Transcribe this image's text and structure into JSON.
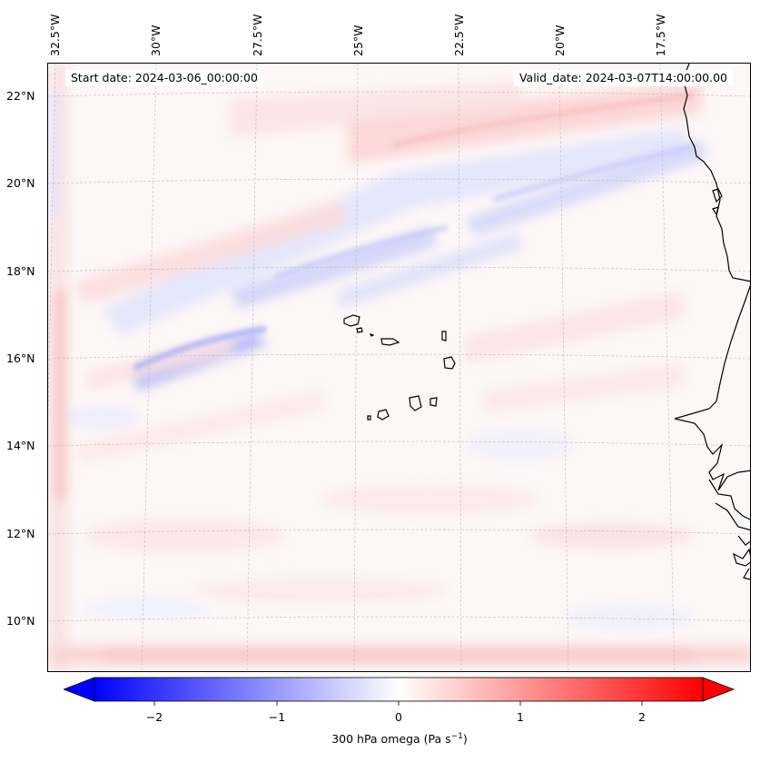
{
  "header": {
    "start_date": "Start date: 2024-03-06_00:00:00",
    "valid_date": "Valid_date: 2024-03-07T14:00:00.00"
  },
  "axes": {
    "lon_labels": [
      "32.5°W",
      "30°W",
      "27.5°W",
      "25°W",
      "22.5°W",
      "20°W",
      "17.5°W"
    ],
    "lat_labels": [
      "22°N",
      "20°N",
      "18°N",
      "16°N",
      "14°N",
      "12°N",
      "10°N"
    ]
  },
  "colorbar": {
    "ticks": [
      "−2",
      "−1",
      "0",
      "1",
      "2"
    ],
    "tick_values": [
      -2,
      -1,
      0,
      1,
      2
    ],
    "range": [
      -2.5,
      2.5
    ],
    "label": "300 hPa omega (Pa s",
    "label_exponent": "−1",
    "label_close": ")",
    "colormap": "bwr",
    "negative_color": "#0000ff",
    "zero_color": "#ffffff",
    "positive_color": "#ff0000"
  },
  "map": {
    "field": "300 hPa omega",
    "coastline_color": "#000000",
    "grid_color": "#b8b8b8"
  }
}
